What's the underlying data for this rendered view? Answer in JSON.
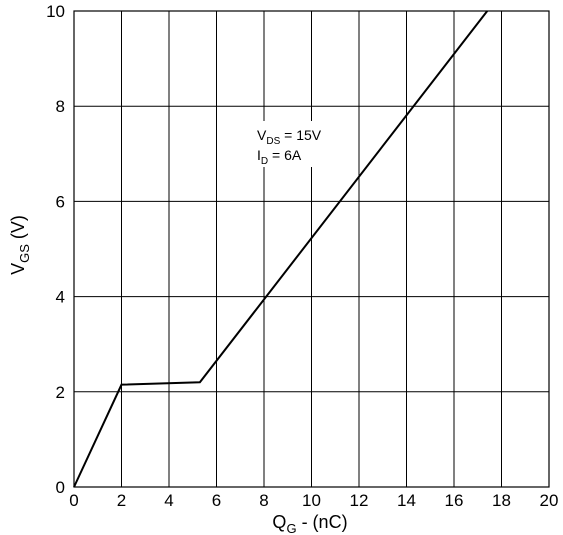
{
  "chart_data": {
    "type": "line",
    "xlabel": {
      "main": "Q",
      "sub": "G",
      "rest": " - (nC)"
    },
    "ylabel": {
      "main": "V",
      "sub": "GS",
      "rest": " (V)"
    },
    "xlim": [
      0,
      20
    ],
    "ylim": [
      0,
      10
    ],
    "xticks": [
      0,
      2,
      4,
      6,
      8,
      10,
      12,
      14,
      16,
      18,
      20
    ],
    "yticks": [
      0,
      2,
      4,
      6,
      8,
      10
    ],
    "grid": true,
    "annotation": {
      "line1": {
        "main": "V",
        "sub": "DS",
        "rest": " = 15V"
      },
      "line2": {
        "main": "I",
        "sub": "D",
        "rest": " = 6A"
      }
    },
    "series": [
      {
        "x": [
          0,
          2,
          5.3,
          17.4
        ],
        "y": [
          0,
          2.15,
          2.2,
          10
        ]
      }
    ]
  }
}
